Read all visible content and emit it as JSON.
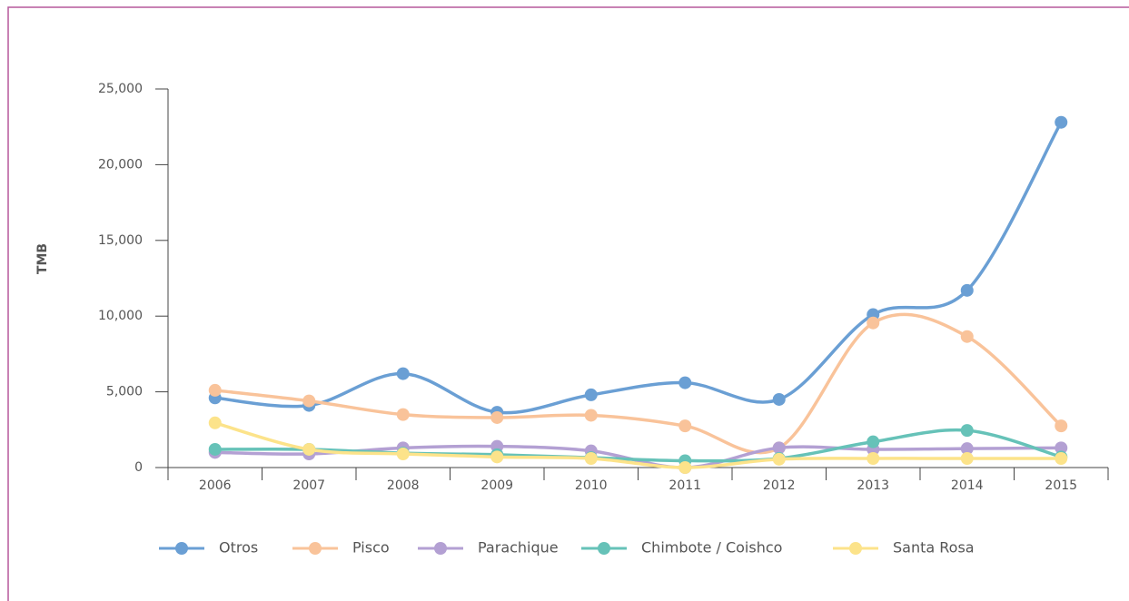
{
  "chart_data": {
    "type": "line",
    "y_label": "TMB",
    "categories": [
      "2006",
      "2007",
      "2008",
      "2009",
      "2010",
      "2011",
      "2012",
      "2013",
      "2014",
      "2015"
    ],
    "series": [
      {
        "name": "Otros",
        "color": "#6a9fd4",
        "values": [
          4600,
          4100,
          6200,
          3650,
          4800,
          5600,
          4500,
          10100,
          11700,
          22800
        ]
      },
      {
        "name": "Pisco",
        "color": "#f9c39a",
        "values": [
          5100,
          4400,
          3500,
          3300,
          3450,
          2750,
          1300,
          9550,
          8650,
          2750
        ]
      },
      {
        "name": "Parachique",
        "color": "#b3a0d3",
        "values": [
          1000,
          900,
          1300,
          1400,
          1100,
          0,
          1300,
          1200,
          1250,
          1300
        ]
      },
      {
        "name": "Chimbote / Coishco",
        "color": "#66c2b8",
        "values": [
          1200,
          1200,
          950,
          850,
          650,
          450,
          600,
          1700,
          2450,
          700
        ]
      },
      {
        "name": "Santa Rosa",
        "color": "#fce38a",
        "values": [
          2950,
          1200,
          900,
          700,
          600,
          0,
          550,
          600,
          600,
          600
        ]
      }
    ],
    "ylim": [
      0,
      25000
    ],
    "yticks": [
      0,
      {
        "value": 5000,
        "label": "5,000"
      },
      {
        "value": 10000,
        "label": "10,000"
      },
      {
        "value": 15000,
        "label": "15,000"
      },
      {
        "value": 20000,
        "label": "20,000"
      },
      {
        "value": 25000,
        "label": "25,000"
      }
    ],
    "legend": "bottom"
  }
}
